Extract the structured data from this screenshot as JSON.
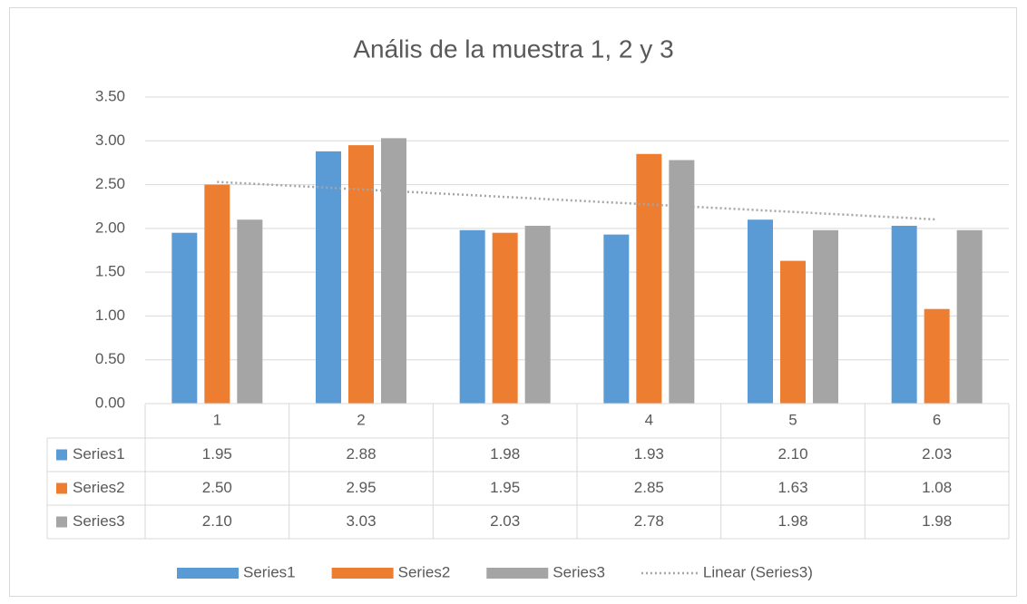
{
  "chart_data": {
    "type": "bar",
    "title": "Anális de la muestra 1, 2 y 3",
    "categories": [
      "1",
      "2",
      "3",
      "4",
      "5",
      "6"
    ],
    "series": [
      {
        "name": "Series1",
        "color": "#5b9bd5",
        "values": [
          1.95,
          2.88,
          1.98,
          1.93,
          2.1,
          2.03
        ],
        "value_labels": [
          "1.95",
          "2.88",
          "1.98",
          "1.93",
          "2.10",
          "2.03"
        ]
      },
      {
        "name": "Series2",
        "color": "#ed7d31",
        "values": [
          2.5,
          2.95,
          1.95,
          2.85,
          1.63,
          1.08
        ],
        "value_labels": [
          "2.50",
          "2.95",
          "1.95",
          "2.85",
          "1.63",
          "1.08"
        ]
      },
      {
        "name": "Series3",
        "color": "#a5a5a5",
        "values": [
          2.1,
          3.03,
          2.03,
          2.78,
          1.98,
          1.98
        ],
        "value_labels": [
          "2.10",
          "3.03",
          "2.03",
          "2.78",
          "1.98",
          "1.98"
        ]
      }
    ],
    "trendline": {
      "type": "linear",
      "series": 2,
      "label": "Linear (Series3)",
      "color": "#a5a5a5",
      "style": "dotted"
    },
    "ylim": [
      0,
      3.5
    ],
    "yticks": [
      {
        "value": 0,
        "label": "0.00"
      },
      {
        "value": 0.5,
        "label": "0.50"
      },
      {
        "value": 1,
        "label": "1.00"
      },
      {
        "value": 1.5,
        "label": "1.50"
      },
      {
        "value": 2,
        "label": "2.00"
      },
      {
        "value": 2.5,
        "label": "2.50"
      },
      {
        "value": 3,
        "label": "3.00"
      },
      {
        "value": 3.5,
        "label": "3.50"
      }
    ],
    "grid": true,
    "data_table": true,
    "legend": "bottom"
  }
}
